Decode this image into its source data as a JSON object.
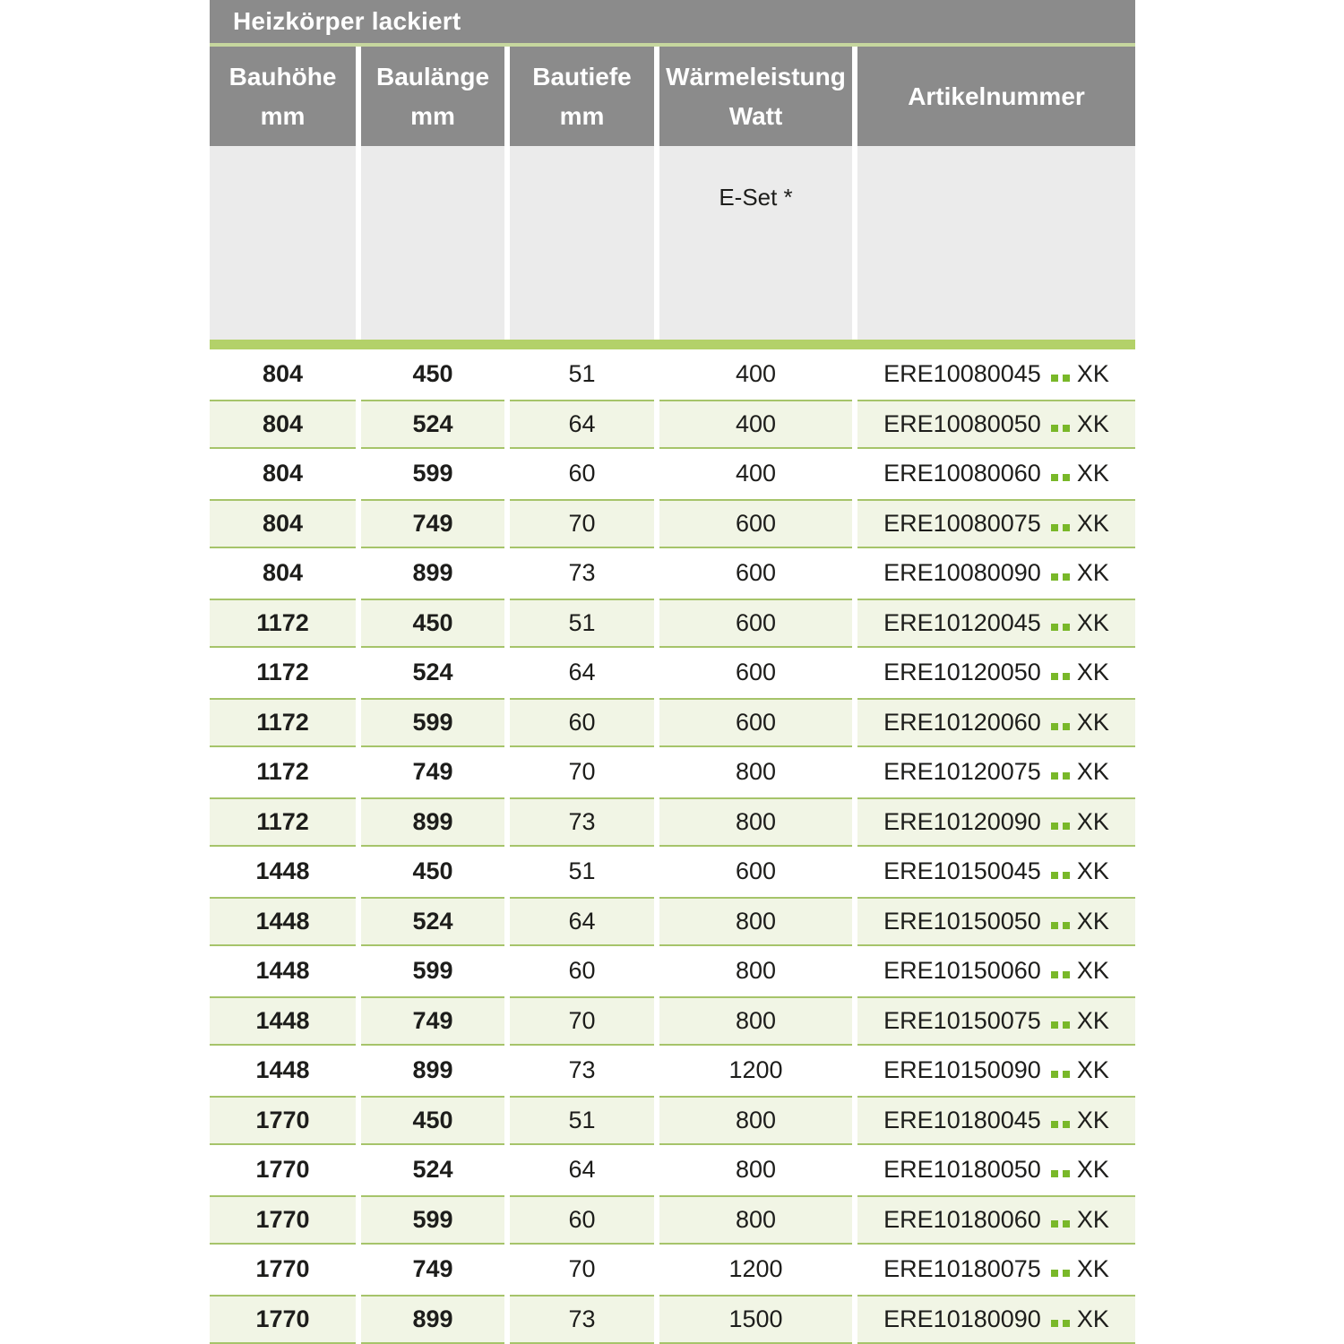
{
  "title_bar": {
    "label": "Heizkörper lackiert"
  },
  "header": {
    "columns": [
      {
        "label": "Bauhöhe",
        "unit": "mm"
      },
      {
        "label": "Baulänge",
        "unit": "mm"
      },
      {
        "label": "Bautiefe",
        "unit": "mm"
      },
      {
        "label": "Wärmeleistung",
        "unit": "Watt"
      },
      {
        "label": "Artikelnummer",
        "unit": ""
      }
    ],
    "subheader": {
      "eset_label": "E-Set *"
    }
  },
  "table": {
    "rows": [
      {
        "bauhoehe": "804",
        "baulaenge": "450",
        "bautiefe": "51",
        "waermeleistung": "400",
        "artikel_prefix": "ERE10080045",
        "artikel_suffix": "XK"
      },
      {
        "bauhoehe": "804",
        "baulaenge": "524",
        "bautiefe": "64",
        "waermeleistung": "400",
        "artikel_prefix": "ERE10080050",
        "artikel_suffix": "XK"
      },
      {
        "bauhoehe": "804",
        "baulaenge": "599",
        "bautiefe": "60",
        "waermeleistung": "400",
        "artikel_prefix": "ERE10080060",
        "artikel_suffix": "XK"
      },
      {
        "bauhoehe": "804",
        "baulaenge": "749",
        "bautiefe": "70",
        "waermeleistung": "600",
        "artikel_prefix": "ERE10080075",
        "artikel_suffix": "XK"
      },
      {
        "bauhoehe": "804",
        "baulaenge": "899",
        "bautiefe": "73",
        "waermeleistung": "600",
        "artikel_prefix": "ERE10080090",
        "artikel_suffix": "XK"
      },
      {
        "bauhoehe": "1172",
        "baulaenge": "450",
        "bautiefe": "51",
        "waermeleistung": "600",
        "artikel_prefix": "ERE10120045",
        "artikel_suffix": "XK"
      },
      {
        "bauhoehe": "1172",
        "baulaenge": "524",
        "bautiefe": "64",
        "waermeleistung": "600",
        "artikel_prefix": "ERE10120050",
        "artikel_suffix": "XK"
      },
      {
        "bauhoehe": "1172",
        "baulaenge": "599",
        "bautiefe": "60",
        "waermeleistung": "600",
        "artikel_prefix": "ERE10120060",
        "artikel_suffix": "XK"
      },
      {
        "bauhoehe": "1172",
        "baulaenge": "749",
        "bautiefe": "70",
        "waermeleistung": "800",
        "artikel_prefix": "ERE10120075",
        "artikel_suffix": "XK"
      },
      {
        "bauhoehe": "1172",
        "baulaenge": "899",
        "bautiefe": "73",
        "waermeleistung": "800",
        "artikel_prefix": "ERE10120090",
        "artikel_suffix": "XK"
      },
      {
        "bauhoehe": "1448",
        "baulaenge": "450",
        "bautiefe": "51",
        "waermeleistung": "600",
        "artikel_prefix": "ERE10150045",
        "artikel_suffix": "XK"
      },
      {
        "bauhoehe": "1448",
        "baulaenge": "524",
        "bautiefe": "64",
        "waermeleistung": "800",
        "artikel_prefix": "ERE10150050",
        "artikel_suffix": "XK"
      },
      {
        "bauhoehe": "1448",
        "baulaenge": "599",
        "bautiefe": "60",
        "waermeleistung": "800",
        "artikel_prefix": "ERE10150060",
        "artikel_suffix": "XK"
      },
      {
        "bauhoehe": "1448",
        "baulaenge": "749",
        "bautiefe": "70",
        "waermeleistung": "800",
        "artikel_prefix": "ERE10150075",
        "artikel_suffix": "XK"
      },
      {
        "bauhoehe": "1448",
        "baulaenge": "899",
        "bautiefe": "73",
        "waermeleistung": "1200",
        "artikel_prefix": "ERE10150090",
        "artikel_suffix": "XK"
      },
      {
        "bauhoehe": "1770",
        "baulaenge": "450",
        "bautiefe": "51",
        "waermeleistung": "800",
        "artikel_prefix": "ERE10180045",
        "artikel_suffix": "XK"
      },
      {
        "bauhoehe": "1770",
        "baulaenge": "524",
        "bautiefe": "64",
        "waermeleistung": "800",
        "artikel_prefix": "ERE10180050",
        "artikel_suffix": "XK"
      },
      {
        "bauhoehe": "1770",
        "baulaenge": "599",
        "bautiefe": "60",
        "waermeleistung": "800",
        "artikel_prefix": "ERE10180060",
        "artikel_suffix": "XK"
      },
      {
        "bauhoehe": "1770",
        "baulaenge": "749",
        "bautiefe": "70",
        "waermeleistung": "1200",
        "artikel_prefix": "ERE10180075",
        "artikel_suffix": "XK"
      },
      {
        "bauhoehe": "1770",
        "baulaenge": "899",
        "bautiefe": "73",
        "waermeleistung": "1500",
        "artikel_prefix": "ERE10180090",
        "artikel_suffix": "XK"
      }
    ]
  },
  "colors": {
    "header_gray": "#8b8b8b",
    "subheader_gray": "#ebebeb",
    "divider_green": "#c6d79e",
    "band_green": "#b3d169",
    "row_fill_green": "#f1f5e5",
    "row_border_green": "#a6c46a",
    "accent_green": "#79b829",
    "text": "#1d1d1b"
  }
}
